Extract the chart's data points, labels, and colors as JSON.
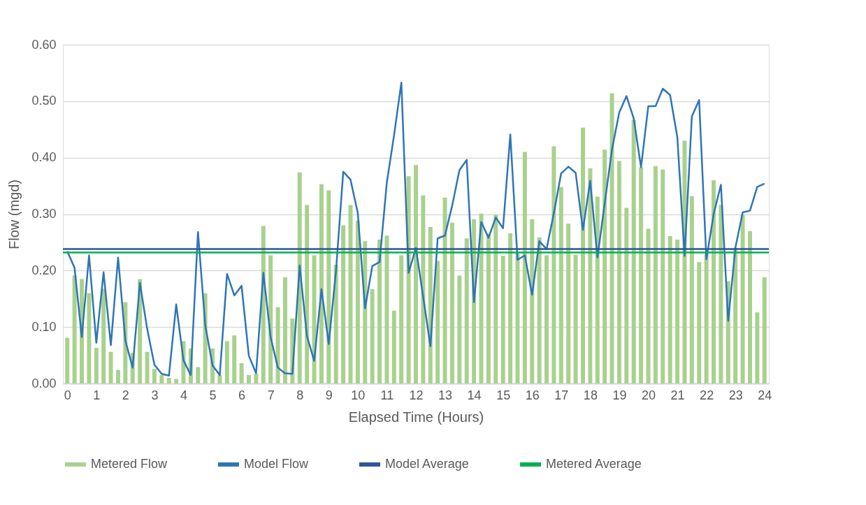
{
  "chart_data": {
    "type": "bar",
    "xlabel": "Elapsed Time (Hours)",
    "ylabel": "Flow (mgd)",
    "x": [
      0,
      0.25,
      0.5,
      0.75,
      1,
      1.25,
      1.5,
      1.75,
      2,
      2.25,
      2.5,
      2.75,
      3,
      3.25,
      3.5,
      3.75,
      4,
      4.25,
      4.5,
      4.75,
      5,
      5.25,
      5.5,
      5.75,
      6,
      6.25,
      6.5,
      6.75,
      7,
      7.25,
      7.5,
      7.75,
      8,
      8.25,
      8.5,
      8.75,
      9,
      9.25,
      9.5,
      9.75,
      10,
      10.25,
      10.5,
      10.75,
      11,
      11.25,
      11.5,
      11.75,
      12,
      12.25,
      12.5,
      12.75,
      13,
      13.25,
      13.5,
      13.75,
      14,
      14.25,
      14.5,
      14.75,
      15,
      15.25,
      15.5,
      15.75,
      16,
      16.25,
      16.5,
      16.75,
      17,
      17.25,
      17.5,
      17.75,
      18,
      18.25,
      18.5,
      18.75,
      19,
      19.25,
      19.5,
      19.75,
      20,
      20.25,
      20.5,
      20.75,
      21,
      21.25,
      21.5,
      21.75,
      22,
      22.25,
      22.5,
      22.75,
      23,
      23.25,
      23.5,
      23.75,
      24
    ],
    "series": [
      {
        "name": "Metered Flow",
        "color": "#a9d18e",
        "values": [
          0.081,
          0.191,
          0.185,
          0.16,
          0.063,
          0.168,
          0.056,
          0.024,
          0.144,
          0.054,
          0.185,
          0.056,
          0.026,
          0.015,
          0.01,
          0.008,
          0.075,
          0.062,
          0.029,
          0.16,
          0.062,
          0.015,
          0.075,
          0.085,
          0.036,
          0.015,
          0.017,
          0.279,
          0.227,
          0.135,
          0.188,
          0.115,
          0.374,
          0.316,
          0.227,
          0.353,
          0.342,
          0.21,
          0.28,
          0.316,
          0.288,
          0.252,
          0.167,
          0.255,
          0.262,
          0.129,
          0.227,
          0.367,
          0.387,
          0.333,
          0.277,
          0.217,
          0.329,
          0.285,
          0.191,
          0.257,
          0.291,
          0.301,
          0.265,
          0.299,
          0.226,
          0.266,
          0.23,
          0.41,
          0.291,
          0.259,
          0.227,
          0.42,
          0.348,
          0.283,
          0.228,
          0.453,
          0.381,
          0.331,
          0.414,
          0.514,
          0.394,
          0.311,
          0.467,
          0.383,
          0.274,
          0.385,
          0.379,
          0.261,
          0.255,
          0.43,
          0.332,
          0.215,
          0.23,
          0.36,
          0.316,
          0.181,
          0.24,
          0.299,
          0.27,
          0.126,
          0.188
        ]
      },
      {
        "name": "Model Flow",
        "type": "line",
        "color": "#2e75b6",
        "values": [
          0.234,
          0.205,
          0.082,
          0.227,
          0.072,
          0.197,
          0.068,
          0.223,
          0.076,
          0.028,
          0.178,
          0.097,
          0.033,
          0.017,
          0.014,
          0.14,
          0.041,
          0.015,
          0.268,
          0.103,
          0.032,
          0.015,
          0.194,
          0.156,
          0.173,
          0.049,
          0.018,
          0.196,
          0.082,
          0.028,
          0.018,
          0.017,
          0.209,
          0.084,
          0.04,
          0.167,
          0.07,
          0.199,
          0.375,
          0.361,
          0.302,
          0.133,
          0.208,
          0.215,
          0.356,
          0.44,
          0.533,
          0.196,
          0.24,
          0.154,
          0.066,
          0.257,
          0.262,
          0.315,
          0.378,
          0.396,
          0.144,
          0.286,
          0.258,
          0.294,
          0.275,
          0.441,
          0.219,
          0.227,
          0.157,
          0.252,
          0.238,
          0.302,
          0.372,
          0.384,
          0.373,
          0.272,
          0.359,
          0.223,
          0.319,
          0.414,
          0.48,
          0.509,
          0.469,
          0.383,
          0.491,
          0.491,
          0.522,
          0.511,
          0.436,
          0.226,
          0.473,
          0.502,
          0.22,
          0.3,
          0.352,
          0.111,
          0.241,
          0.303,
          0.306,
          0.348,
          0.354
        ]
      }
    ],
    "ref_lines": [
      {
        "axis": "y",
        "value": 0.238,
        "label": "Model Average",
        "color": "#2f5597"
      },
      {
        "axis": "y",
        "value": 0.232,
        "label": "Metered Average",
        "color": "#00b050"
      }
    ],
    "xlim": [
      -0.15,
      24.15
    ],
    "xticks": [
      0,
      1,
      2,
      3,
      4,
      5,
      6,
      7,
      8,
      9,
      10,
      11,
      12,
      13,
      14,
      15,
      16,
      17,
      18,
      19,
      20,
      21,
      22,
      23,
      24
    ],
    "ylim": [
      0,
      0.6
    ],
    "yticks": [
      {
        "value": 0,
        "label": "0.00"
      },
      {
        "value": 0.1,
        "label": "0.10"
      },
      {
        "value": 0.2,
        "label": "0.20"
      },
      {
        "value": 0.3,
        "label": "0.30"
      },
      {
        "value": 0.4,
        "label": "0.40"
      },
      {
        "value": 0.5,
        "label": "0.50"
      },
      {
        "value": 0.6,
        "label": "0.60"
      }
    ],
    "grid": "y",
    "legend": "bottom",
    "line_style": "solid",
    "marker": "none"
  }
}
